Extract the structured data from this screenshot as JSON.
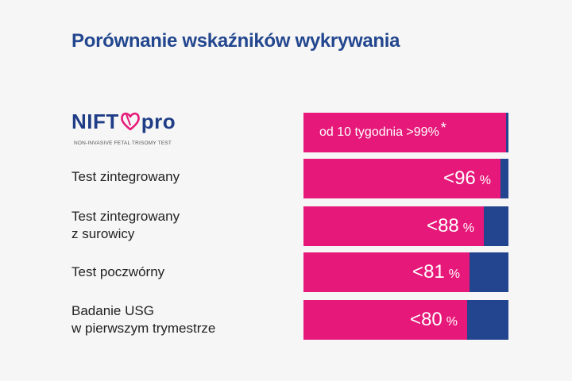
{
  "title": "Porównanie wskaźników wykrywania",
  "logo": {
    "word_left": "NIFT",
    "word_right": "pro",
    "tagline": "NON-INVASIVE FETAL TRISOMY TEST"
  },
  "colors": {
    "title": "#23478f",
    "bar_fill": "#e6197a",
    "bar_track": "#23448e",
    "background": "#f7f6f6"
  },
  "chart_data": {
    "type": "bar",
    "orientation": "horizontal",
    "categories": [
      "NIFTY pro",
      "Test zintegrowany",
      "Test zintegrowany z surowicy",
      "Test poczwórny",
      "Badanie USG w pierwszym trymestrze"
    ],
    "values": [
      99,
      96,
      88,
      81,
      80
    ],
    "ylim": [
      0,
      100
    ],
    "top_label": {
      "text": "od 10 tygodnia >99%",
      "mark": "*"
    },
    "data_labels": [
      {
        "value": "<96",
        "unit": "%"
      },
      {
        "value": "<88",
        "unit": "%"
      },
      {
        "value": "<81",
        "unit": "%"
      },
      {
        "value": "<80",
        "unit": "%"
      }
    ],
    "row_labels": [
      {
        "line1": "Test zintegrowany",
        "line2": ""
      },
      {
        "line1": "Test zintegrowany",
        "line2": "z surowicy"
      },
      {
        "line1": "Test poczwórny",
        "line2": ""
      },
      {
        "line1": "Badanie USG",
        "line2": "w pierwszym trymestrze"
      }
    ]
  }
}
